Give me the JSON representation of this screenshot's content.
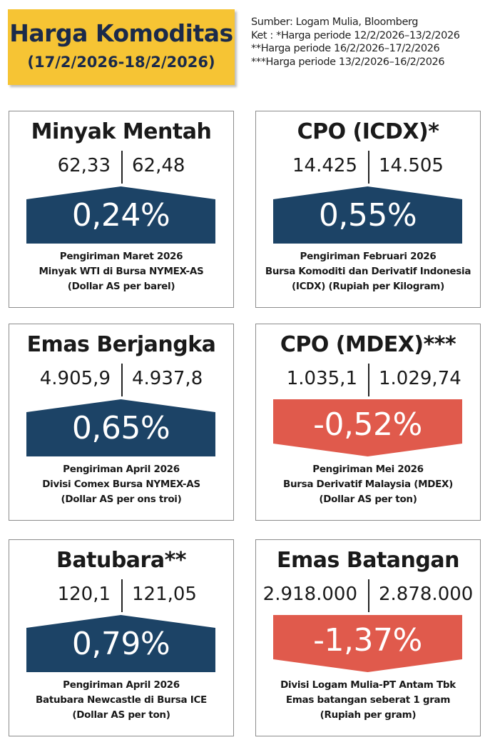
{
  "header": {
    "title": "Harga Komoditas",
    "subtitle": "(17/2/2026-18/2/2026)"
  },
  "notes": [
    "Sumber: Logam Mulia, Bloomberg",
    "Ket : *Harga periode 12/2/2026–13/2/2026",
    "**Harga periode 16/2/2026–17/2/2026",
    "***Harga periode 13/2/2026–16/2/2026"
  ],
  "colors": {
    "up": "#1c4366",
    "down": "#e05a4c",
    "header_bg": "#f6c434"
  },
  "cards": [
    {
      "title": "Minyak Mentah",
      "prev": "62,33",
      "curr": "62,48",
      "change": "0,24%",
      "direction": "up",
      "desc": [
        "Pengiriman Maret 2026",
        "Minyak WTI di Bursa NYMEX-AS",
        "(Dollar AS per barel)"
      ]
    },
    {
      "title": "CPO (ICDX)*",
      "prev": "14.425",
      "curr": "14.505",
      "change": "0,55%",
      "direction": "up",
      "desc": [
        "Pengiriman Februari 2026",
        "Bursa Komoditi dan Derivatif Indonesia",
        "(ICDX) (Rupiah per Kilogram)"
      ]
    },
    {
      "title": "Emas Berjangka",
      "prev": "4.905,9",
      "curr": "4.937,8",
      "change": "0,65%",
      "direction": "up",
      "desc": [
        "Pengiriman April 2026",
        "Divisi Comex Bursa NYMEX-AS",
        "(Dollar AS per ons troi)"
      ]
    },
    {
      "title": "CPO (MDEX)***",
      "prev": "1.035,1",
      "curr": "1.029,74",
      "change": "-0,52%",
      "direction": "down",
      "desc": [
        "Pengiriman Mei 2026",
        "Bursa Derivatif Malaysia (MDEX)",
        "(Dollar AS per ton)"
      ]
    },
    {
      "title": "Batubara**",
      "prev": "120,1",
      "curr": "121,05",
      "change": "0,79%",
      "direction": "up",
      "desc": [
        "Pengiriman April 2026",
        "Batubara Newcastle di Bursa ICE",
        "(Dollar AS per ton)"
      ]
    },
    {
      "title": "Emas Batangan",
      "prev": "2.918.000",
      "curr": "2.878.000",
      "change": "-1,37%",
      "direction": "down",
      "desc": [
        "Divisi Logam Mulia-PT Antam Tbk",
        "Emas batangan seberat 1 gram",
        "(Rupiah per gram)"
      ]
    }
  ]
}
